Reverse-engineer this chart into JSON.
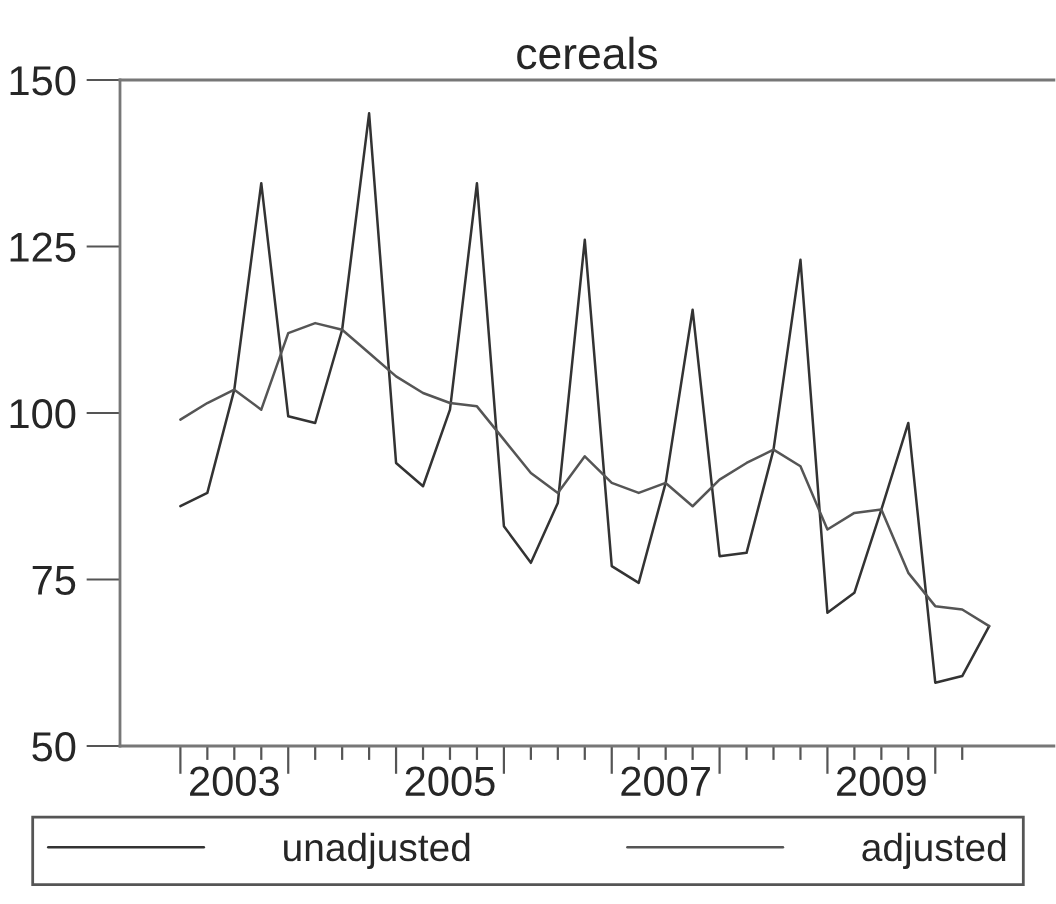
{
  "chart_data": {
    "type": "line",
    "title": "cereals",
    "x": [
      2003,
      2003.25,
      2003.5,
      2003.75,
      2004,
      2004.25,
      2004.5,
      2004.75,
      2005,
      2005.25,
      2005.5,
      2005.75,
      2006,
      2006.25,
      2006.5,
      2006.75,
      2007,
      2007.25,
      2007.5,
      2007.75,
      2008,
      2008.25,
      2008.5,
      2008.75,
      2009,
      2009.25,
      2009.5,
      2009.75,
      2010,
      2010.25,
      2010.5
    ],
    "series": [
      {
        "name": "unadjusted",
        "color": "#333333",
        "values": [
          86,
          88,
          103.5,
          134.5,
          99.5,
          98.5,
          112.5,
          145,
          92.5,
          89,
          100.5,
          134.5,
          83,
          77.5,
          86.5,
          126,
          77,
          74.5,
          89.5,
          115.5,
          78.5,
          79,
          94.5,
          123,
          70,
          73,
          85.5,
          98.5,
          59.5,
          60.5,
          68
        ]
      },
      {
        "name": "adjusted",
        "color": "#555555",
        "values": [
          99,
          101.5,
          103.5,
          100.5,
          112,
          113.5,
          112.5,
          109,
          105.5,
          103,
          101.5,
          101,
          96,
          91,
          88,
          93.5,
          89.5,
          88,
          89.5,
          86,
          90,
          92.5,
          94.5,
          92,
          82.5,
          85,
          85.5,
          76,
          71,
          70.5,
          68
        ]
      }
    ],
    "xlim": [
      2002.44,
      2011.1
    ],
    "xticks": [
      {
        "value": 2003,
        "label": null
      },
      {
        "value": 2003.25,
        "label": null
      },
      {
        "value": 2003.5,
        "label": "2003"
      },
      {
        "value": 2003.75,
        "label": null
      },
      {
        "value": 2004,
        "label": null
      },
      {
        "value": 2004.25,
        "label": null
      },
      {
        "value": 2004.5,
        "label": null
      },
      {
        "value": 2004.75,
        "label": null
      },
      {
        "value": 2005,
        "label": null
      },
      {
        "value": 2005.25,
        "label": null
      },
      {
        "value": 2005.5,
        "label": "2005"
      },
      {
        "value": 2005.75,
        "label": null
      },
      {
        "value": 2006,
        "label": null
      },
      {
        "value": 2006.25,
        "label": null
      },
      {
        "value": 2006.5,
        "label": null
      },
      {
        "value": 2006.75,
        "label": null
      },
      {
        "value": 2007,
        "label": null
      },
      {
        "value": 2007.25,
        "label": null
      },
      {
        "value": 2007.5,
        "label": "2007"
      },
      {
        "value": 2007.75,
        "label": null
      },
      {
        "value": 2008,
        "label": null
      },
      {
        "value": 2008.25,
        "label": null
      },
      {
        "value": 2008.5,
        "label": null
      },
      {
        "value": 2008.75,
        "label": null
      },
      {
        "value": 2009,
        "label": null
      },
      {
        "value": 2009.25,
        "label": null
      },
      {
        "value": 2009.5,
        "label": "2009"
      },
      {
        "value": 2009.75,
        "label": null
      },
      {
        "value": 2010,
        "label": null
      },
      {
        "value": 2010.25,
        "label": null
      }
    ],
    "ylim": [
      50,
      150
    ],
    "yticks": [
      50,
      75,
      100,
      125,
      150
    ],
    "grid": false,
    "legend": "bottom",
    "marker": "none",
    "line_style": "solid"
  }
}
